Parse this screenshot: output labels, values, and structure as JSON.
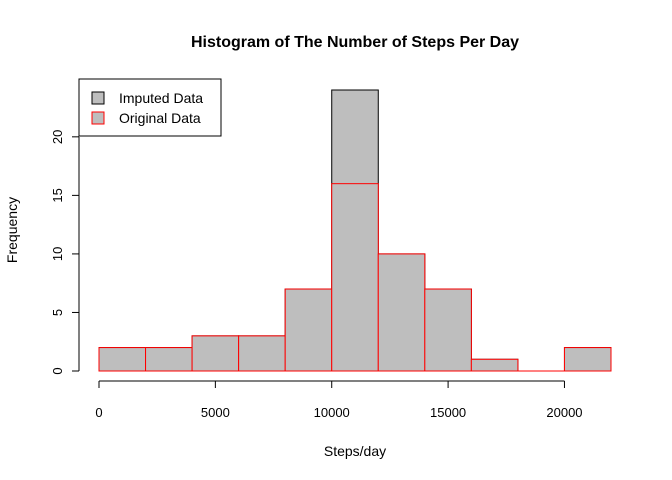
{
  "chart_data": {
    "type": "bar",
    "title": "Histogram of The Number of Steps Per Day",
    "xlabel": "Steps/day",
    "ylabel": "Frequency",
    "bin_edges": [
      0,
      2000,
      4000,
      6000,
      8000,
      10000,
      12000,
      14000,
      16000,
      18000,
      20000,
      22000
    ],
    "series": [
      {
        "name": "Imputed Data",
        "values": [
          2,
          2,
          3,
          3,
          7,
          24,
          10,
          7,
          1,
          0,
          2
        ],
        "fill": "#bebebe",
        "stroke": "#000000"
      },
      {
        "name": "Original Data",
        "values": [
          2,
          2,
          3,
          3,
          7,
          16,
          10,
          7,
          1,
          0,
          2
        ],
        "fill": "#bebebe",
        "stroke": "#ff0000"
      }
    ],
    "xlim": [
      0,
      22000
    ],
    "ylim": [
      0,
      24
    ],
    "x_ticks": [
      0,
      5000,
      10000,
      15000,
      20000
    ],
    "x_tick_labels": [
      "0",
      "5000",
      "10000",
      "15000",
      "20000"
    ],
    "y_ticks": [
      0,
      5,
      10,
      15,
      20
    ],
    "y_tick_labels": [
      "0",
      "5",
      "10",
      "15",
      "20"
    ],
    "legend": {
      "position": "top-left",
      "entries": [
        "Imputed Data",
        "Original Data"
      ]
    },
    "grid": false
  }
}
